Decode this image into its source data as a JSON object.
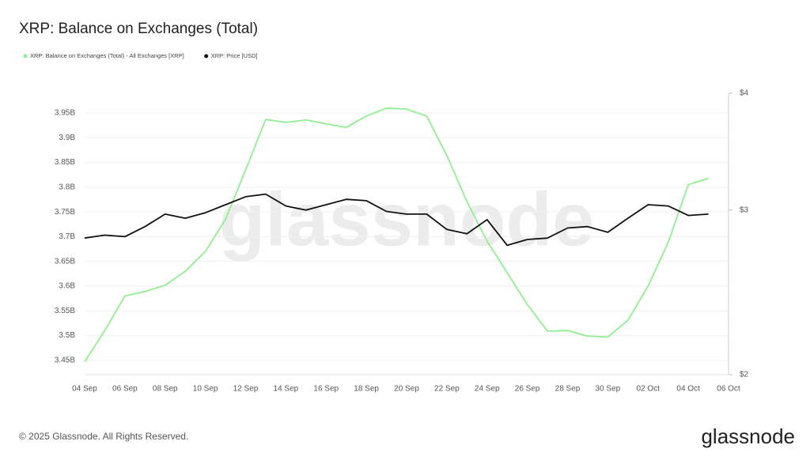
{
  "chart_data": {
    "type": "line",
    "title": "XRP: Balance on Exchanges (Total)",
    "watermark": "glassnode",
    "footer": "© 2025 Glassnode. All Rights Reserved.",
    "logo": "glassnode",
    "categories": [
      "04 Sep",
      null,
      "06 Sep",
      null,
      "08 Sep",
      null,
      "10 Sep",
      null,
      "12 Sep",
      null,
      "14 Sep",
      null,
      "16 Sep",
      null,
      "18 Sep",
      null,
      "20 Sep",
      null,
      "22 Sep",
      null,
      "24 Sep",
      null,
      "26 Sep",
      null,
      "28 Sep",
      null,
      "30 Sep",
      null,
      "02 Oct",
      null,
      "04 Oct",
      null,
      "06 Oct"
    ],
    "series": [
      {
        "name": "XRP: Balance on Exchanges (Total) - All Exchanges [XRP]",
        "color": "#8ff08f",
        "axis": "y",
        "values": [
          3.447,
          3.51,
          3.58,
          3.589,
          3.602,
          3.63,
          3.67,
          3.735,
          3.835,
          3.937,
          3.931,
          3.936,
          3.928,
          3.921,
          3.944,
          3.96,
          3.958,
          3.944,
          3.864,
          3.771,
          3.691,
          3.627,
          3.563,
          3.509,
          3.51,
          3.499,
          3.497,
          3.531,
          3.6,
          3.688,
          3.805,
          3.818,
          null
        ]
      },
      {
        "name": "XRP: Price [USD]",
        "color": "#111111",
        "axis": "y2",
        "values": [
          2.8,
          2.82,
          2.81,
          2.88,
          2.97,
          2.94,
          2.98,
          3.04,
          3.1,
          3.12,
          3.03,
          3.0,
          3.04,
          3.08,
          3.07,
          2.99,
          2.97,
          2.97,
          2.86,
          2.83,
          2.93,
          2.75,
          2.79,
          2.8,
          2.87,
          2.88,
          2.84,
          2.94,
          3.04,
          3.03,
          2.96,
          2.97,
          null
        ]
      }
    ],
    "ylim": [
      3.421,
      3.99
    ],
    "yticks": [
      {
        "value": 3.45,
        "label": "3.45B"
      },
      {
        "value": 3.5,
        "label": "3.5B"
      },
      {
        "value": 3.55,
        "label": "3.55B"
      },
      {
        "value": 3.6,
        "label": "3.6B"
      },
      {
        "value": 3.65,
        "label": "3.65B"
      },
      {
        "value": 3.7,
        "label": "3.7B"
      },
      {
        "value": 3.75,
        "label": "3.75B"
      },
      {
        "value": 3.8,
        "label": "3.8B"
      },
      {
        "value": 3.85,
        "label": "3.85B"
      },
      {
        "value": 3.9,
        "label": "3.9B"
      },
      {
        "value": 3.95,
        "label": "3.95B"
      }
    ],
    "y2lim": [
      2,
      4
    ],
    "y2ticks": [
      {
        "value": 2,
        "label": "$2"
      },
      {
        "value": 3,
        "label": "$3"
      },
      {
        "value": 4,
        "label": "$4"
      }
    ],
    "y2log": true,
    "grid": true
  }
}
